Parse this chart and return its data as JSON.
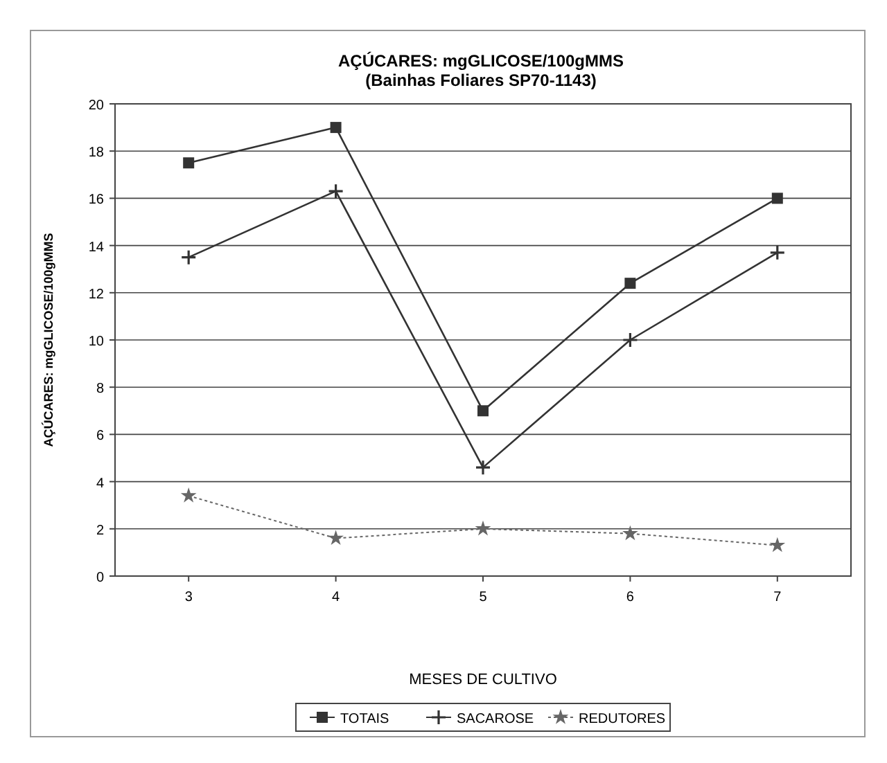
{
  "chart_data": {
    "type": "line",
    "title": "AÇÚCARES: mgGLICOSE/100gMMS",
    "subtitle": "(Bainhas Foliares SP70-1143)",
    "xlabel": "MESES DE CULTIVO",
    "ylabel": "AÇÚCARES: mgGLICOSE/100gMMS",
    "categories": [
      "3",
      "4",
      "5",
      "6",
      "7"
    ],
    "series": [
      {
        "name": "TOTAIS",
        "color": "#333333",
        "marker": "square",
        "line_style": "solid",
        "values": [
          17.5,
          19,
          7,
          12.4,
          16
        ]
      },
      {
        "name": "SACAROSE",
        "color": "#333333",
        "marker": "cross",
        "line_style": "solid",
        "values": [
          13.5,
          16.3,
          4.6,
          10,
          13.7
        ]
      },
      {
        "name": "REDUTORES",
        "color": "#666666",
        "marker": "star",
        "line_style": "dotted",
        "values": [
          3.4,
          1.6,
          2,
          1.8,
          1.3
        ]
      }
    ],
    "ylim": [
      0,
      20
    ],
    "yticks": [
      0,
      2,
      4,
      6,
      8,
      10,
      12,
      14,
      16,
      18,
      20
    ],
    "grid": "y",
    "legend": "bottom"
  }
}
